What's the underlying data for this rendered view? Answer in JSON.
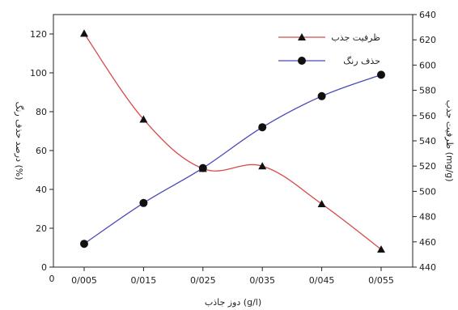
{
  "chart_data": {
    "type": "line",
    "x_categories": [
      "0/005",
      "0/015",
      "0/025",
      "0/035",
      "0/045",
      "0/055"
    ],
    "x_extra_tick": "0",
    "xlabel": "دوز جاذب (g/l)",
    "ylabel_left": "درصد حذف رنگ (%)",
    "ylabel_right": "ظرفیت جذب (mg/g)",
    "ylim_left": [
      0,
      130
    ],
    "yticks_left": [
      0,
      20,
      40,
      60,
      80,
      100,
      120
    ],
    "ylim_right": [
      440,
      640
    ],
    "yticks_right": [
      440,
      460,
      480,
      500,
      520,
      540,
      560,
      580,
      600,
      620,
      640
    ],
    "legend_position": "top-right",
    "grid": false,
    "series": [
      {
        "name": "ظرفیت جذب",
        "axis": "right",
        "marker": "triangle",
        "color": "#d84a4a",
        "values": [
          625,
          557,
          518,
          520,
          490,
          454
        ]
      },
      {
        "name": "حذف رنگ",
        "axis": "left",
        "marker": "circle",
        "color": "#4a4ab8",
        "values": [
          12,
          33,
          51,
          72,
          88,
          99
        ]
      }
    ]
  }
}
